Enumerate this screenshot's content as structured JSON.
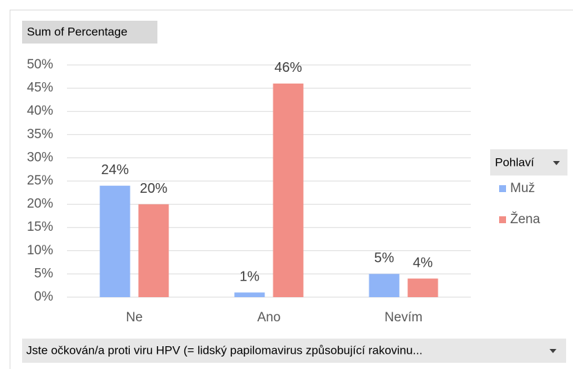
{
  "chart_data": {
    "type": "bar",
    "value_field_button": "Sum of Percentage",
    "legend_title": "Pohlaví",
    "axis_field_button": "Jste očkován/a proti viru HPV (= lidský papilomavirus způsobující rakovinu...",
    "categories": [
      "Ne",
      "Ano",
      "Nevím"
    ],
    "series": [
      {
        "name": "Muž",
        "color": "#8fb4f7",
        "values": [
          24,
          1,
          5
        ],
        "value_labels": [
          "24%",
          "1%",
          "5%"
        ]
      },
      {
        "name": "Žena",
        "color": "#f28e86",
        "values": [
          20,
          46,
          4
        ],
        "value_labels": [
          "20%",
          "46%",
          "4%"
        ]
      }
    ],
    "ylim": [
      0,
      50
    ],
    "yticks": [
      {
        "value": 0,
        "label": "0%"
      },
      {
        "value": 5,
        "label": "5%"
      },
      {
        "value": 10,
        "label": "10%"
      },
      {
        "value": 15,
        "label": "15%"
      },
      {
        "value": 20,
        "label": "20%"
      },
      {
        "value": 25,
        "label": "25%"
      },
      {
        "value": 30,
        "label": "30%"
      },
      {
        "value": 35,
        "label": "35%"
      },
      {
        "value": 40,
        "label": "40%"
      },
      {
        "value": 45,
        "label": "45%"
      },
      {
        "value": 50,
        "label": "50%"
      }
    ],
    "grid": true
  }
}
